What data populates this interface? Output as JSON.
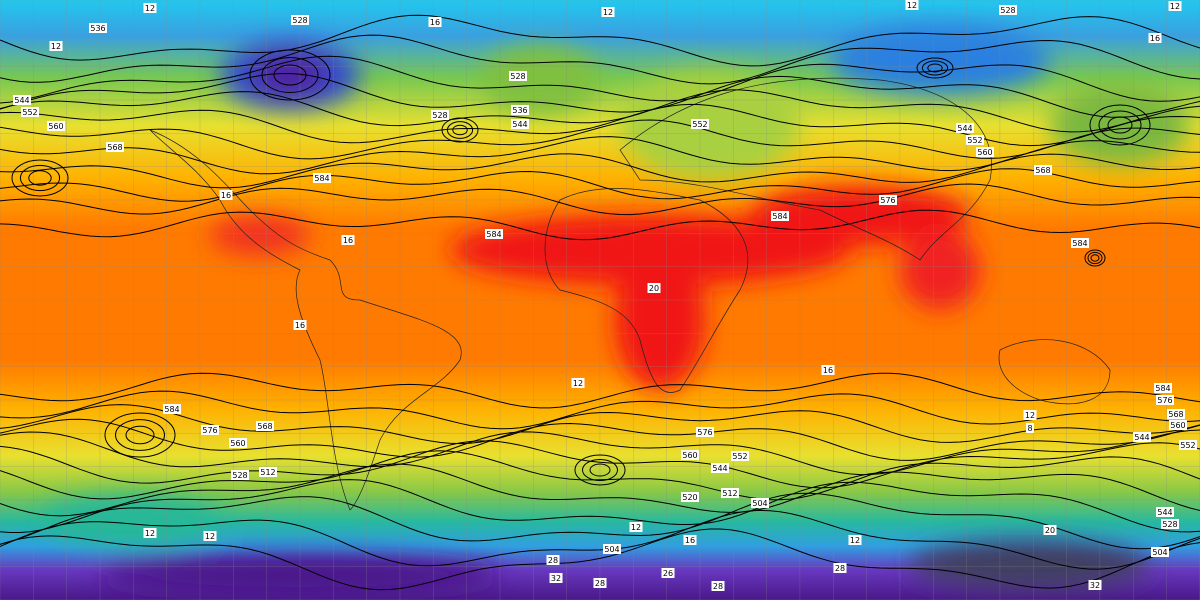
{
  "contour_labels": [
    "536",
    "528",
    "12",
    "12",
    "16",
    "12",
    "12",
    "528",
    "12",
    "16",
    "544",
    "552",
    "560",
    "568",
    "528",
    "528",
    "536",
    "544",
    "552",
    "544",
    "552",
    "560",
    "568",
    "584",
    "584",
    "584",
    "576",
    "584",
    "584",
    "576",
    "560",
    "568",
    "528",
    "512",
    "576",
    "560",
    "544",
    "552",
    "520",
    "512",
    "504",
    "504",
    "584",
    "576",
    "568",
    "560",
    "544",
    "552",
    "544",
    "528",
    "504",
    "32",
    "28",
    "28",
    "26",
    "28",
    "32",
    "28",
    "20",
    "12",
    "8",
    "12",
    "16",
    "16",
    "20",
    "16",
    "16",
    "12",
    "12",
    "12",
    "16",
    "12"
  ]
}
